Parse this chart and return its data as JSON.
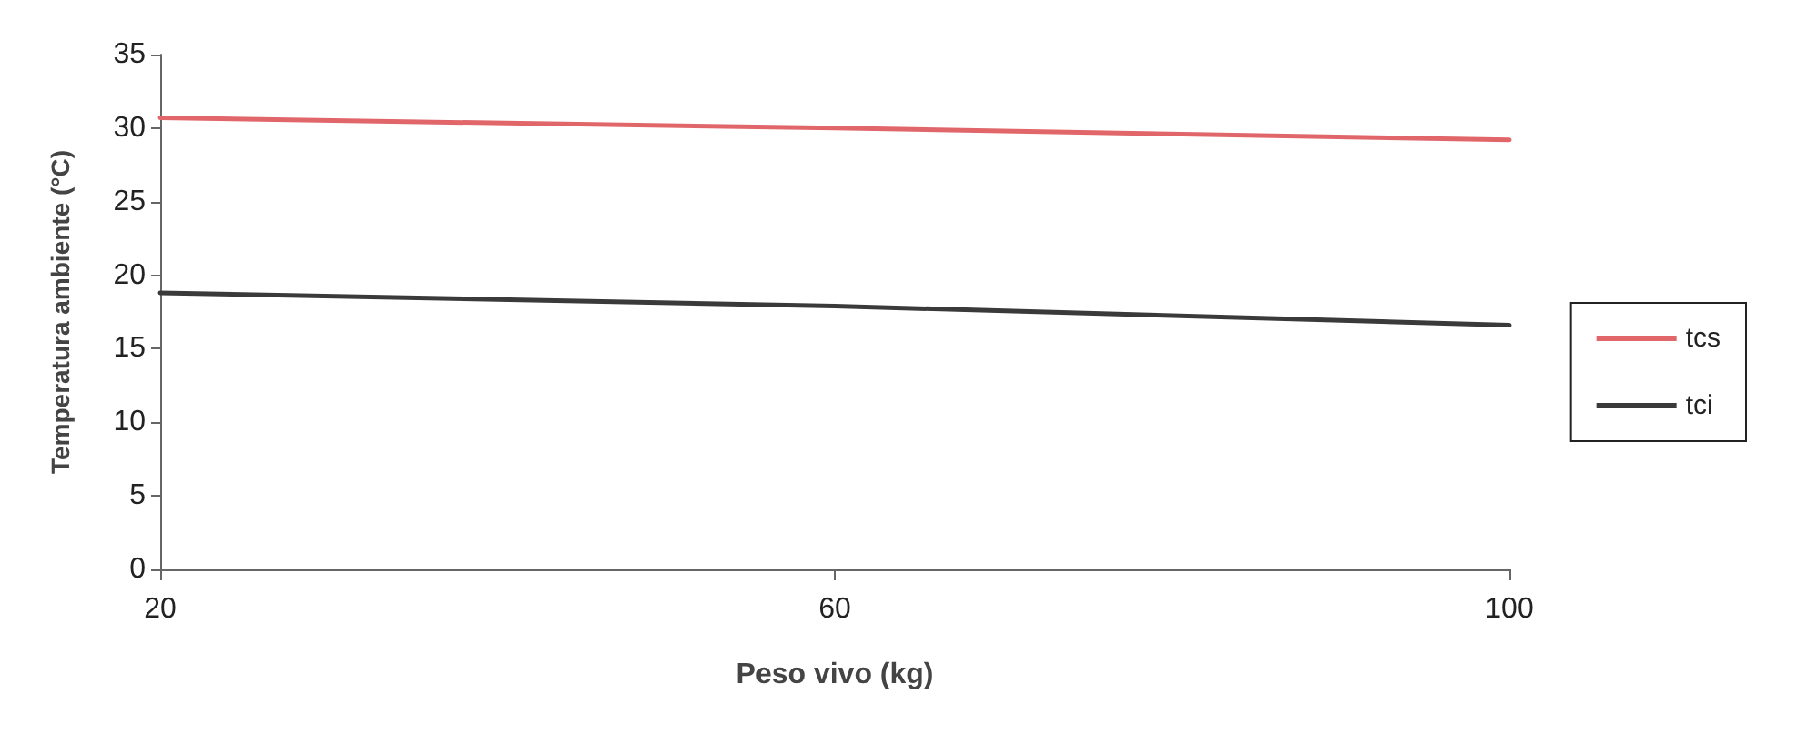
{
  "chart_data": {
    "type": "line",
    "xlabel": "Peso vivo (kg)",
    "ylabel": "Temperatura ambiente (°C)",
    "x": [
      20,
      60,
      100
    ],
    "series": [
      {
        "name": "tcs",
        "color": "#e0666a",
        "values": [
          30.7,
          30.0,
          29.2
        ]
      },
      {
        "name": "tci",
        "color": "#3a3a3a",
        "values": [
          18.8,
          17.9,
          16.6
        ]
      }
    ],
    "xlim": [
      20,
      100
    ],
    "xticks": [
      20,
      60,
      100
    ],
    "ylim": [
      0,
      35
    ],
    "yticks": [
      0,
      5,
      10,
      15,
      20,
      25,
      30,
      35
    ],
    "grid": false,
    "legend": "right",
    "marker": "none",
    "line_style": "solid"
  }
}
